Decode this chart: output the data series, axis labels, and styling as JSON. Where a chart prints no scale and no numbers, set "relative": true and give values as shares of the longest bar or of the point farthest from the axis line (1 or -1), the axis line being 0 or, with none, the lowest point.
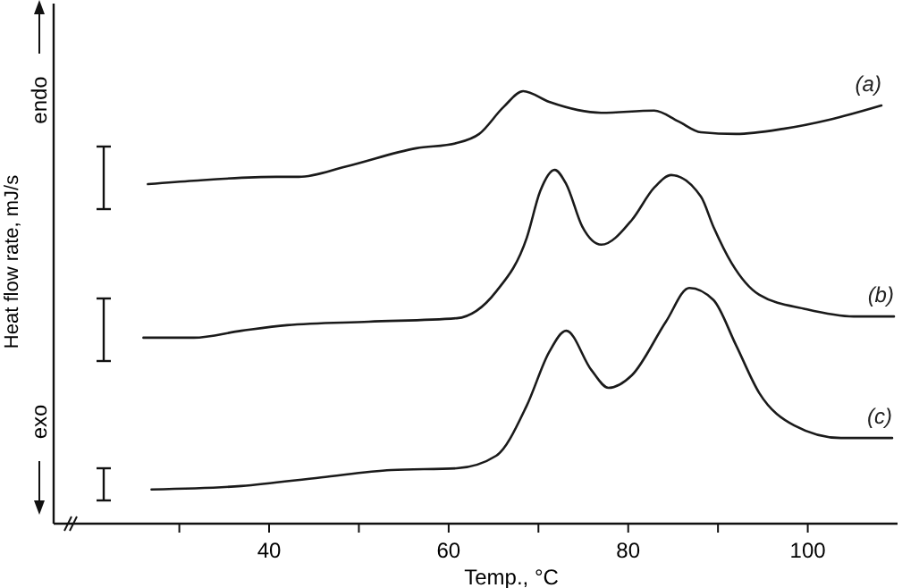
{
  "chart_data": {
    "type": "line",
    "relative": true,
    "xlabel": "Temp., °C",
    "ylabel": "Heat flow rate, mJ/s",
    "xlim": [
      16,
      110
    ],
    "xticks": [
      {
        "value": 30,
        "label": null
      },
      40,
      {
        "value": 50,
        "label": null
      },
      60,
      {
        "value": 70,
        "label": null
      },
      80,
      {
        "value": 90,
        "label": null
      },
      100
    ],
    "annotations": [
      "endo",
      "exo"
    ],
    "legend": false,
    "grid": false,
    "marker": "none",
    "line_style": "solid",
    "series": [
      {
        "name": "(a)",
        "color": "#1a1a1a",
        "x": [
          26.5,
          31.6,
          40.8,
          43.3,
          48.6,
          56.4,
          60.9,
          63.4,
          66.1,
          68.3,
          71.2,
          77.0,
          82.9,
          85.6,
          88.1,
          92.0,
          97.3,
          102.4,
          108.2
        ],
        "values": [
          0.785,
          0.793,
          0.802,
          0.802,
          0.826,
          0.868,
          0.88,
          0.901,
          0.963,
          1.0,
          0.975,
          0.95,
          0.955,
          0.93,
          0.905,
          0.901,
          0.913,
          0.934,
          0.967
        ]
      },
      {
        "name": "(b)",
        "color": "#1a1a1a",
        "x": [
          26.0,
          31.6,
          36.9,
          42.0,
          51.1,
          60.9,
          65.3,
          68.7,
          70.2,
          71.8,
          73.1,
          74.9,
          77.0,
          80.4,
          82.9,
          84.8,
          88.1,
          89.5,
          91.5,
          94.6,
          99.8,
          105.1,
          109.6
        ],
        "values": [
          0.43,
          0.43,
          0.446,
          0.459,
          0.467,
          0.475,
          0.537,
          0.661,
          0.769,
          0.818,
          0.785,
          0.686,
          0.645,
          0.702,
          0.777,
          0.806,
          0.756,
          0.686,
          0.603,
          0.529,
          0.496,
          0.479,
          0.479
        ]
      },
      {
        "name": "(c)",
        "color": "#1a1a1a",
        "x": [
          26.9,
          36.9,
          45.8,
          53.6,
          60.9,
          65.3,
          68.7,
          71.2,
          73.1,
          75.9,
          77.8,
          80.4,
          84.2,
          86.8,
          89.5,
          92.0,
          94.6,
          98.5,
          103.7,
          109.4
        ],
        "values": [
          0.079,
          0.087,
          0.107,
          0.124,
          0.128,
          0.157,
          0.273,
          0.397,
          0.446,
          0.355,
          0.314,
          0.343,
          0.467,
          0.545,
          0.517,
          0.413,
          0.302,
          0.227,
          0.198,
          0.198
        ]
      }
    ]
  }
}
